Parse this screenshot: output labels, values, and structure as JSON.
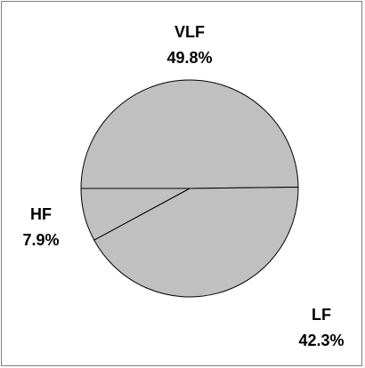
{
  "chart_data": {
    "type": "pie",
    "categories": [
      "VLF",
      "LF",
      "HF"
    ],
    "values": [
      49.8,
      42.3,
      7.9
    ],
    "value_labels": [
      "49.8%",
      "42.3%",
      "7.9%"
    ],
    "color": "#c0c0c0"
  }
}
